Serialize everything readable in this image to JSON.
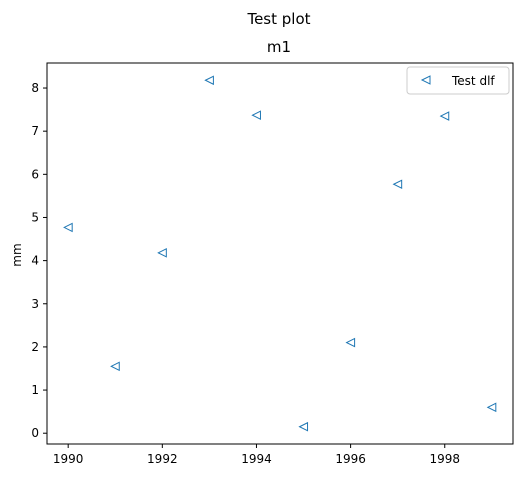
{
  "chart_data": {
    "type": "scatter",
    "suptitle": "Test plot",
    "title": "m1",
    "xlabel": "",
    "ylabel": "mm",
    "xlim": [
      1989.55,
      1999.45
    ],
    "ylim": [
      -0.25,
      8.58
    ],
    "xticks": [
      1990,
      1992,
      1994,
      1996,
      1998
    ],
    "yticks": [
      0,
      1,
      2,
      3,
      4,
      5,
      6,
      7,
      8
    ],
    "grid": false,
    "legend_position": "top-right",
    "marker": "triangle-left-open",
    "series": [
      {
        "name": "Test dlf",
        "color": "#1f77b4",
        "x": [
          1990,
          1991,
          1992,
          1993,
          1994,
          1995,
          1996,
          1997,
          1998,
          1999
        ],
        "y": [
          4.77,
          1.55,
          4.18,
          8.18,
          7.37,
          0.15,
          2.1,
          5.77,
          7.35,
          0.6
        ]
      }
    ]
  }
}
